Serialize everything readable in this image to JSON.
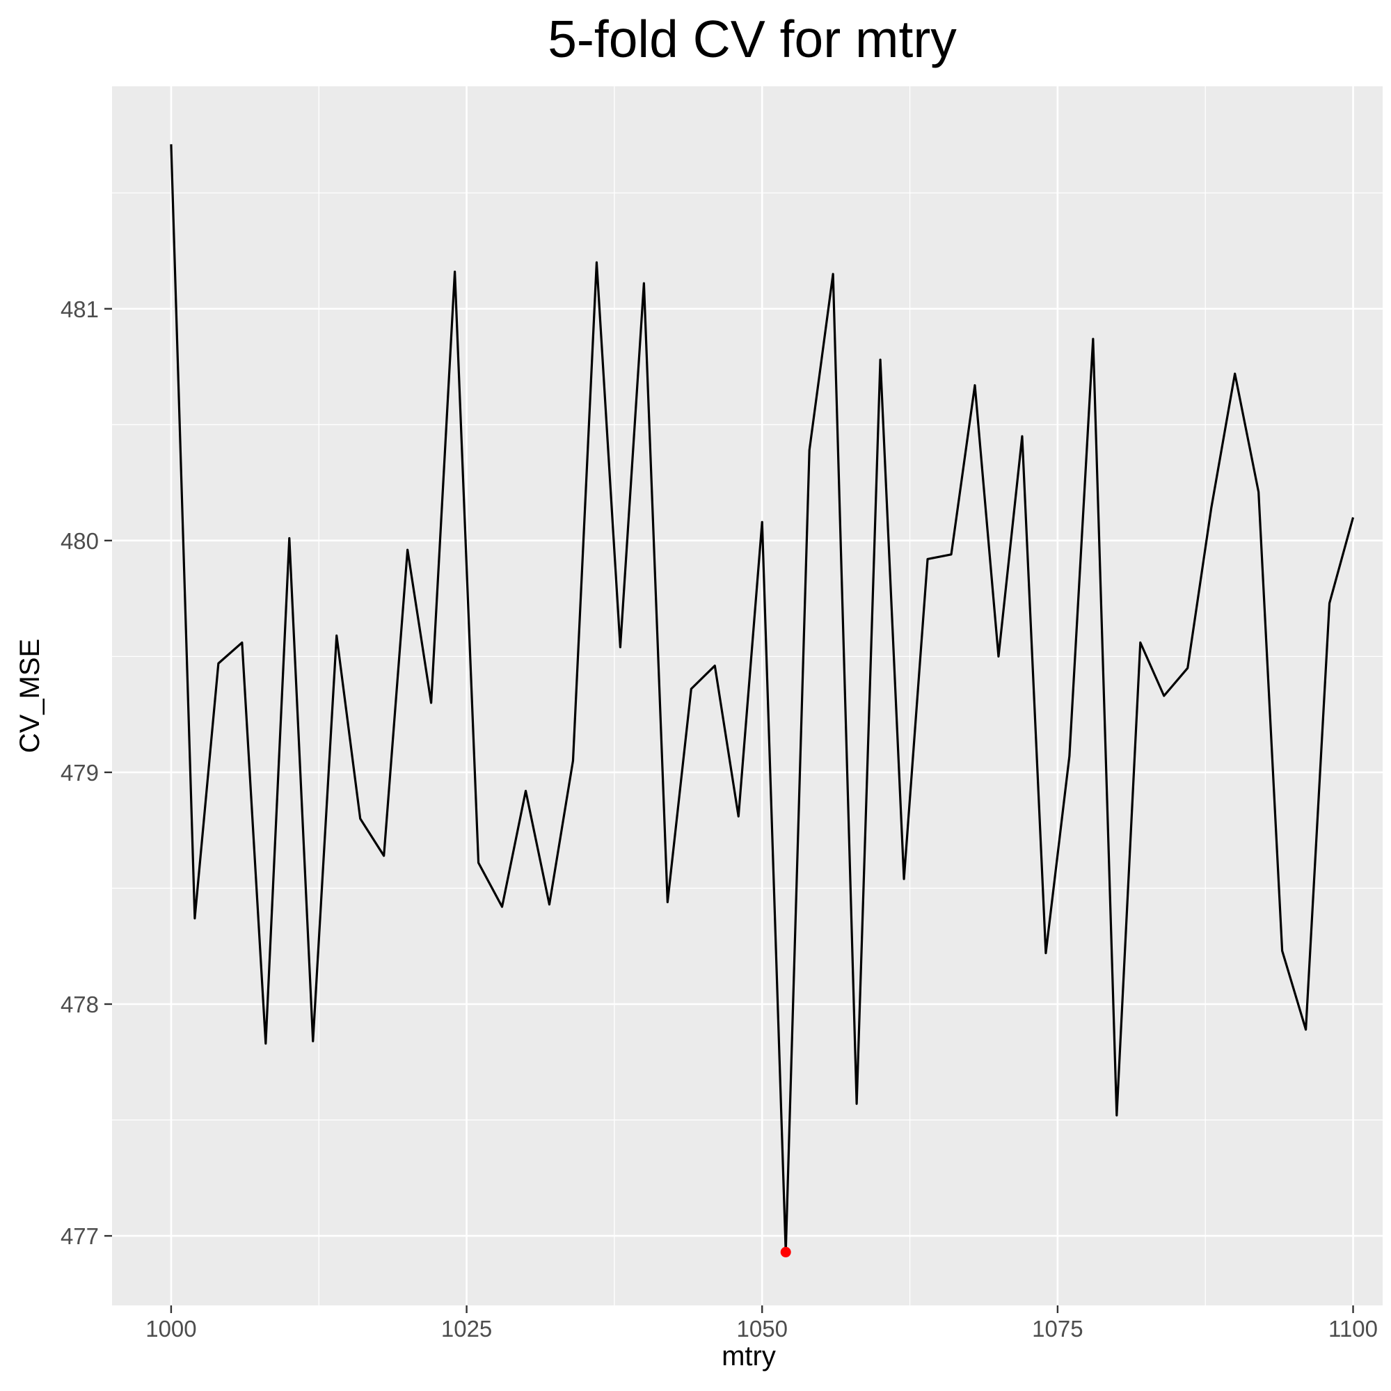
{
  "chart_data": {
    "type": "line",
    "title": "5-fold CV for mtry",
    "xlabel": "mtry",
    "ylabel": "CV_MSE",
    "xlim": [
      995,
      1102.5
    ],
    "ylim": [
      476.7,
      481.96
    ],
    "x_ticks": [
      1000,
      1025,
      1050,
      1075,
      1100
    ],
    "y_ticks": [
      477,
      478,
      479,
      480,
      481
    ],
    "grid": true,
    "legend": "none",
    "line_color": "#000000",
    "highlight_color": "#ff0000",
    "panel_color": "#ebebeb",
    "series": [
      {
        "x": [
          1000,
          1002,
          1004,
          1006,
          1008,
          1010,
          1012,
          1014,
          1016,
          1018,
          1020,
          1022,
          1024,
          1026,
          1028,
          1030,
          1032,
          1034,
          1036,
          1038,
          1040,
          1042,
          1044,
          1046,
          1048,
          1050,
          1052,
          1054,
          1056,
          1058,
          1060,
          1062,
          1064,
          1066,
          1068,
          1070,
          1072,
          1074,
          1076,
          1078,
          1080,
          1082,
          1084,
          1086,
          1088,
          1090,
          1092,
          1094,
          1096,
          1098,
          1100
        ],
        "y": [
          481.71,
          478.37,
          479.47,
          479.56,
          477.83,
          480.01,
          477.84,
          479.59,
          478.8,
          478.64,
          479.96,
          479.3,
          481.16,
          478.61,
          478.42,
          478.92,
          478.43,
          479.05,
          481.2,
          479.54,
          481.11,
          478.44,
          479.36,
          479.46,
          478.81,
          480.08,
          476.93,
          480.39,
          481.15,
          477.57,
          480.78,
          478.54,
          479.92,
          479.94,
          480.67,
          479.5,
          480.45,
          478.22,
          479.07,
          480.87,
          477.52,
          479.56,
          479.33,
          479.45,
          480.14,
          480.72,
          480.21,
          478.23,
          477.89,
          479.73,
          480.1
        ]
      }
    ],
    "highlight_point": {
      "x": 1052,
      "y": 476.93
    }
  }
}
